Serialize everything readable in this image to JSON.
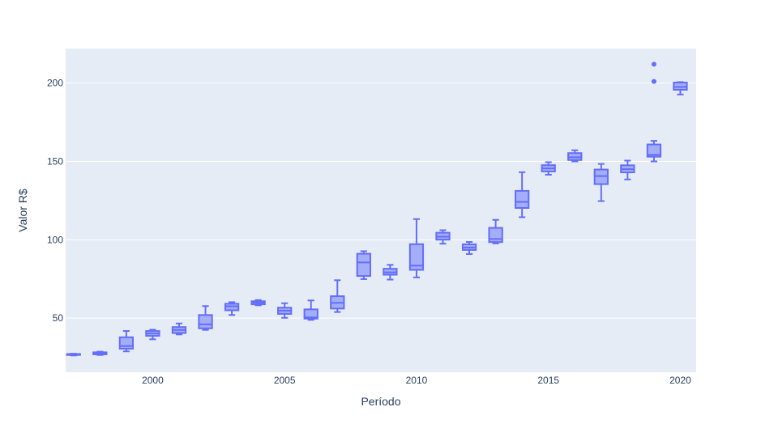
{
  "chart_data": {
    "type": "box",
    "title": "",
    "xlabel": "Período",
    "ylabel": "Valor R$",
    "xlim": [
      1996.7,
      2020.6
    ],
    "ylim": [
      15.5,
      222
    ],
    "xticks": [
      2000,
      2005,
      2010,
      2015,
      2020
    ],
    "yticks": [
      50,
      100,
      150,
      200
    ],
    "grid": true,
    "colors": {
      "plot_bg": "#e5ecf6",
      "grid": "#ffffff",
      "box_line": "#636efa",
      "box_fill": "#636efa",
      "text": "#2a3f5f"
    },
    "boxes": [
      {
        "x": 1997,
        "min": 26.2,
        "q1": 26.5,
        "median": 26.8,
        "q3": 27.1,
        "max": 27.3
      },
      {
        "x": 1998,
        "min": 26.5,
        "q1": 26.9,
        "median": 27.5,
        "q3": 28.2,
        "max": 28.6
      },
      {
        "x": 1999,
        "min": 28.8,
        "q1": 30.5,
        "median": 32.2,
        "q3": 37.8,
        "max": 41.8
      },
      {
        "x": 2000,
        "min": 36.5,
        "q1": 38.7,
        "median": 40.2,
        "q3": 41.8,
        "max": 42.6
      },
      {
        "x": 2001,
        "min": 39.6,
        "q1": 40.5,
        "median": 42.5,
        "q3": 44.3,
        "max": 46.6
      },
      {
        "x": 2002,
        "min": 42.5,
        "q1": 43.5,
        "median": 46.0,
        "q3": 52.0,
        "max": 57.7
      },
      {
        "x": 2003,
        "min": 52.0,
        "q1": 55.0,
        "median": 57.6,
        "q3": 59.2,
        "max": 60.2
      },
      {
        "x": 2004,
        "min": 58.2,
        "q1": 58.8,
        "median": 59.9,
        "q3": 60.8,
        "max": 61.5
      },
      {
        "x": 2005,
        "min": 50.2,
        "q1": 52.7,
        "median": 54.8,
        "q3": 56.7,
        "max": 59.5
      },
      {
        "x": 2006,
        "min": 48.9,
        "q1": 49.7,
        "median": 50.5,
        "q3": 55.6,
        "max": 61.3
      },
      {
        "x": 2007,
        "min": 53.9,
        "q1": 56.1,
        "median": 59.8,
        "q3": 64.0,
        "max": 74.2
      },
      {
        "x": 2008,
        "min": 74.9,
        "q1": 76.9,
        "median": 85.5,
        "q3": 91.1,
        "max": 92.7
      },
      {
        "x": 2009,
        "min": 74.6,
        "q1": 77.7,
        "median": 79.2,
        "q3": 81.5,
        "max": 84.0
      },
      {
        "x": 2010,
        "min": 76.0,
        "q1": 80.8,
        "median": 83.5,
        "q3": 97.2,
        "max": 113.2
      },
      {
        "x": 2011,
        "min": 97.5,
        "q1": 100.1,
        "median": 102.0,
        "q3": 104.5,
        "max": 106.1
      },
      {
        "x": 2012,
        "min": 90.9,
        "q1": 93.5,
        "median": 95.0,
        "q3": 97.1,
        "max": 98.6
      },
      {
        "x": 2013,
        "min": 97.7,
        "q1": 98.5,
        "median": 100.5,
        "q3": 107.6,
        "max": 112.7
      },
      {
        "x": 2014,
        "min": 114.4,
        "q1": 120.3,
        "median": 124.2,
        "q3": 131.2,
        "max": 143.1
      },
      {
        "x": 2015,
        "min": 141.5,
        "q1": 143.6,
        "median": 145.5,
        "q3": 147.6,
        "max": 149.5
      },
      {
        "x": 2016,
        "min": 150.0,
        "q1": 150.9,
        "median": 152.6,
        "q3": 155.3,
        "max": 157.1
      },
      {
        "x": 2017,
        "min": 124.7,
        "q1": 135.5,
        "median": 140.6,
        "q3": 144.8,
        "max": 148.4
      },
      {
        "x": 2018,
        "min": 138.5,
        "q1": 143.0,
        "median": 145.0,
        "q3": 147.5,
        "max": 150.5
      },
      {
        "x": 2019,
        "min": 150.0,
        "q1": 153.0,
        "median": 154.2,
        "q3": 160.8,
        "max": 163.1,
        "outliers": [
          201.0,
          212.0
        ]
      },
      {
        "x": 2020,
        "min": 192.7,
        "q1": 195.7,
        "median": 197.5,
        "q3": 200.3,
        "max": 200.6
      }
    ]
  }
}
